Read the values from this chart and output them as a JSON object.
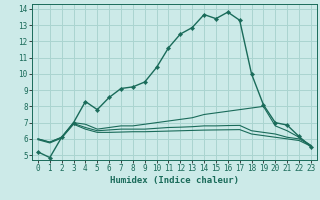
{
  "bg_color": "#cceae8",
  "grid_color": "#aad4d0",
  "line_color": "#1a6b5a",
  "xlabel": "Humidex (Indice chaleur)",
  "xlim": [
    -0.5,
    23.5
  ],
  "ylim": [
    4.7,
    14.3
  ],
  "xticks": [
    0,
    1,
    2,
    3,
    4,
    5,
    6,
    7,
    8,
    9,
    10,
    11,
    12,
    13,
    14,
    15,
    16,
    17,
    18,
    19,
    20,
    21,
    22,
    23
  ],
  "yticks": [
    5,
    6,
    7,
    8,
    9,
    10,
    11,
    12,
    13,
    14
  ],
  "line1_x": [
    0,
    1,
    2,
    3,
    4,
    5,
    6,
    7,
    8,
    9,
    10,
    11,
    12,
    13,
    14,
    15,
    16,
    17,
    18,
    19,
    20,
    21,
    22,
    23
  ],
  "line1_y": [
    5.2,
    4.85,
    6.1,
    7.0,
    8.3,
    7.8,
    8.55,
    9.1,
    9.2,
    9.5,
    10.4,
    11.6,
    12.45,
    12.85,
    13.65,
    13.4,
    13.8,
    13.3,
    10.0,
    8.1,
    7.0,
    6.85,
    6.15,
    5.5
  ],
  "line2_x": [
    0,
    1,
    2,
    3,
    4,
    5,
    6,
    7,
    8,
    9,
    10,
    11,
    12,
    13,
    14,
    15,
    16,
    17,
    18,
    19,
    20,
    21,
    22,
    23
  ],
  "line2_y": [
    6.0,
    5.8,
    6.1,
    7.0,
    6.9,
    6.6,
    6.7,
    6.8,
    6.8,
    6.9,
    7.0,
    7.1,
    7.2,
    7.3,
    7.5,
    7.6,
    7.7,
    7.8,
    7.9,
    8.0,
    6.8,
    6.5,
    6.1,
    5.6
  ],
  "line3_x": [
    0,
    1,
    2,
    3,
    4,
    5,
    6,
    7,
    8,
    9,
    10,
    11,
    12,
    13,
    14,
    15,
    16,
    17,
    18,
    19,
    20,
    21,
    22,
    23
  ],
  "line3_y": [
    6.0,
    5.8,
    6.1,
    6.95,
    6.7,
    6.5,
    6.55,
    6.6,
    6.6,
    6.6,
    6.65,
    6.7,
    6.72,
    6.75,
    6.8,
    6.8,
    6.82,
    6.83,
    6.5,
    6.4,
    6.3,
    6.1,
    6.0,
    5.6
  ],
  "line4_x": [
    0,
    1,
    2,
    3,
    4,
    5,
    6,
    7,
    8,
    9,
    10,
    11,
    12,
    13,
    14,
    15,
    16,
    17,
    18,
    19,
    20,
    21,
    22,
    23
  ],
  "line4_y": [
    5.95,
    5.75,
    6.05,
    6.9,
    6.6,
    6.4,
    6.4,
    6.42,
    6.44,
    6.44,
    6.46,
    6.48,
    6.5,
    6.52,
    6.54,
    6.55,
    6.56,
    6.57,
    6.3,
    6.2,
    6.1,
    6.0,
    5.9,
    5.55
  ],
  "title_fontsize": 5.5,
  "tick_fontsize": 5.5,
  "xlabel_fontsize": 6.5
}
